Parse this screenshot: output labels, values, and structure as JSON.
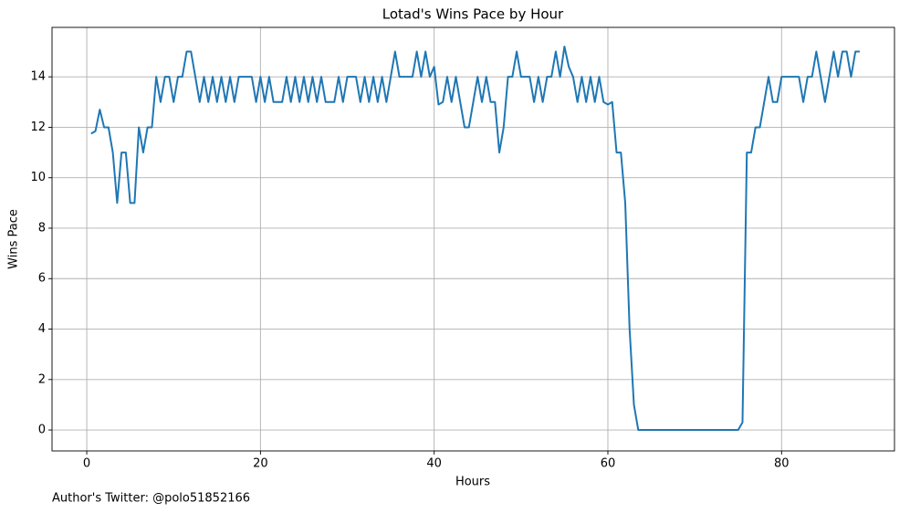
{
  "chart_data": {
    "type": "line",
    "title": "Lotad's Wins Pace by Hour",
    "xlabel": "Hours",
    "ylabel": "Wins Pace",
    "annotation": "Author's Twitter: @polo51852166",
    "color": "#1f77b4",
    "grid": true,
    "xlim": [
      -4,
      93
    ],
    "ylim": [
      -0.83,
      15.96
    ],
    "xticks": [
      0,
      20,
      40,
      60,
      80
    ],
    "yticks": [
      0,
      2,
      4,
      6,
      8,
      10,
      12,
      14
    ],
    "x": [
      0.5,
      1,
      1.5,
      2,
      2.5,
      3,
      3.5,
      4,
      4.5,
      5,
      5.5,
      6,
      6.5,
      7,
      7.5,
      8,
      8.5,
      9,
      9.5,
      10,
      10.5,
      11,
      11.5,
      12,
      12.5,
      13,
      13.5,
      14,
      14.5,
      15,
      15.5,
      16,
      16.5,
      17,
      17.5,
      18,
      18.5,
      19,
      19.5,
      20,
      20.5,
      21,
      21.5,
      22,
      22.5,
      23,
      23.5,
      24,
      24.5,
      25,
      25.5,
      26,
      26.5,
      27,
      27.5,
      28,
      28.5,
      29,
      29.5,
      30,
      30.5,
      31,
      31.5,
      32,
      32.5,
      33,
      33.5,
      34,
      34.5,
      35,
      35.5,
      36,
      36.5,
      37,
      37.5,
      38,
      38.5,
      39,
      39.5,
      40,
      40.5,
      41,
      41.5,
      42,
      42.5,
      43,
      43.5,
      44,
      44.5,
      45,
      45.5,
      46,
      46.5,
      47,
      47.5,
      48,
      48.5,
      49,
      49.5,
      50,
      50.5,
      51,
      51.5,
      52,
      52.5,
      53,
      53.5,
      54,
      54.5,
      55,
      55.5,
      56,
      56.5,
      57,
      57.5,
      58,
      58.5,
      59,
      59.5,
      60,
      60.5,
      61,
      61.5,
      62,
      62.5,
      63,
      63.5,
      64,
      64.5,
      65,
      65.5,
      66,
      66.5,
      67,
      67.5,
      68,
      68.5,
      69,
      69.5,
      70,
      70.5,
      71,
      71.5,
      72,
      72.5,
      73,
      73.5,
      74,
      74.5,
      75,
      75.5,
      76,
      76.5,
      77,
      77.5,
      78,
      78.5,
      79,
      79.5,
      80,
      80.5,
      81,
      81.5,
      82,
      82.5,
      83,
      83.5,
      84,
      84.5,
      85,
      85.5,
      86,
      86.5,
      87,
      87.5,
      88,
      88.5,
      89
    ],
    "values": [
      11.75,
      11.85,
      12.7,
      12,
      12,
      11,
      9,
      11,
      11,
      9,
      9,
      12,
      11,
      12,
      12,
      14,
      13,
      14,
      14,
      13,
      14,
      14,
      15,
      15,
      14,
      13,
      14,
      13,
      14,
      13,
      14,
      13,
      14,
      13,
      14,
      14,
      14,
      14,
      13,
      14,
      13,
      14,
      13,
      13,
      13,
      14,
      13,
      14,
      13,
      14,
      13,
      14,
      13,
      14,
      13,
      13,
      13,
      14,
      13,
      14,
      14,
      14,
      13,
      14,
      13,
      14,
      13,
      14,
      13,
      14,
      15,
      14,
      14,
      14,
      14,
      15,
      14,
      15,
      14,
      14.4,
      12.9,
      13,
      14,
      13,
      14,
      13,
      12,
      12,
      13,
      14,
      13,
      14,
      13,
      13,
      11,
      12,
      14,
      14,
      15,
      14,
      14,
      14,
      13,
      14,
      13,
      14,
      14,
      15,
      14,
      15.2,
      14.4,
      14,
      13,
      14,
      13,
      14,
      13,
      14,
      13,
      12.9,
      13,
      11,
      11,
      9,
      4,
      1,
      0,
      0,
      0,
      0,
      0,
      0,
      0,
      0,
      0,
      0,
      0,
      0,
      0,
      0,
      0,
      0,
      0,
      0,
      0,
      0,
      0,
      0,
      0,
      0,
      0.3,
      11,
      11,
      12,
      12,
      13,
      14,
      13,
      13,
      14,
      14,
      14,
      14,
      14,
      13,
      14,
      14,
      15,
      14,
      13,
      14,
      15,
      14,
      15,
      15,
      14,
      15,
      15
    ]
  }
}
